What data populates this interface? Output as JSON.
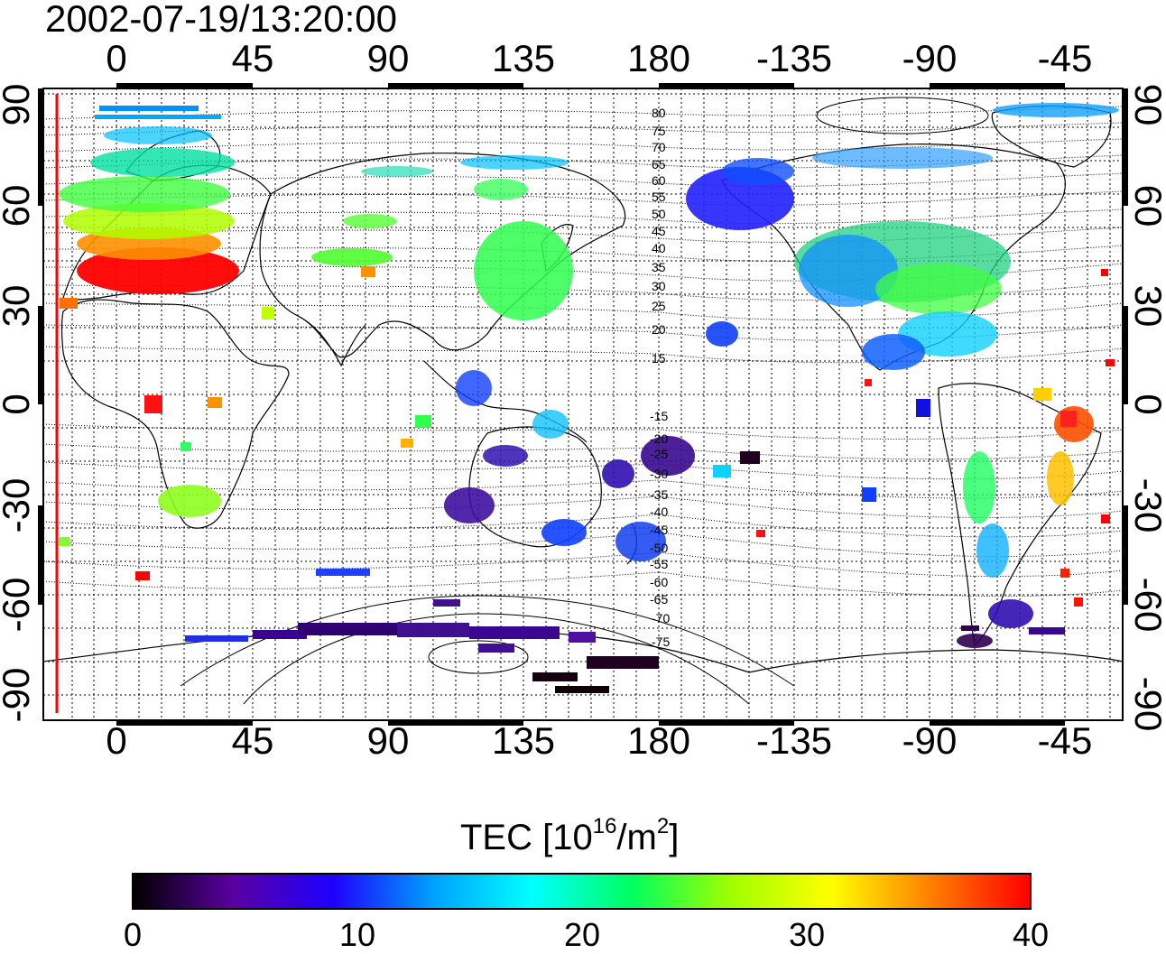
{
  "timestamp": "2002-07-19/13:20:00",
  "longitude_labels": [
    "0",
    "45",
    "90",
    "135",
    "180",
    "-135",
    "-90",
    "-45"
  ],
  "latitude_labels": [
    "90",
    "60",
    "30",
    "0",
    "-30",
    "-60",
    "-90"
  ],
  "colorbar": {
    "title_prefix": "TEC  [10",
    "title_exp1": "16",
    "title_mid": "/m",
    "title_exp2": "2",
    "title_suffix": "]",
    "tick_labels": [
      "0",
      "10",
      "20",
      "30",
      "40"
    ],
    "colors": [
      "#000000",
      "#5a00a0",
      "#1e00ff",
      "#00a0ff",
      "#00ffff",
      "#00ff60",
      "#a0ff00",
      "#ffff00",
      "#ff8000",
      "#ff0000"
    ]
  },
  "mlat_contour_labels": [
    "80",
    "75",
    "70",
    "65",
    "60",
    "55",
    "50",
    "45",
    "40",
    "35",
    "30",
    "25",
    "20",
    "15",
    "-15",
    "-20",
    "-25",
    "-30",
    "-35",
    "-40",
    "-45",
    "-50",
    "-55",
    "-60",
    "-65",
    "-70",
    "-75"
  ],
  "terminator_color": "#ff0000"
}
